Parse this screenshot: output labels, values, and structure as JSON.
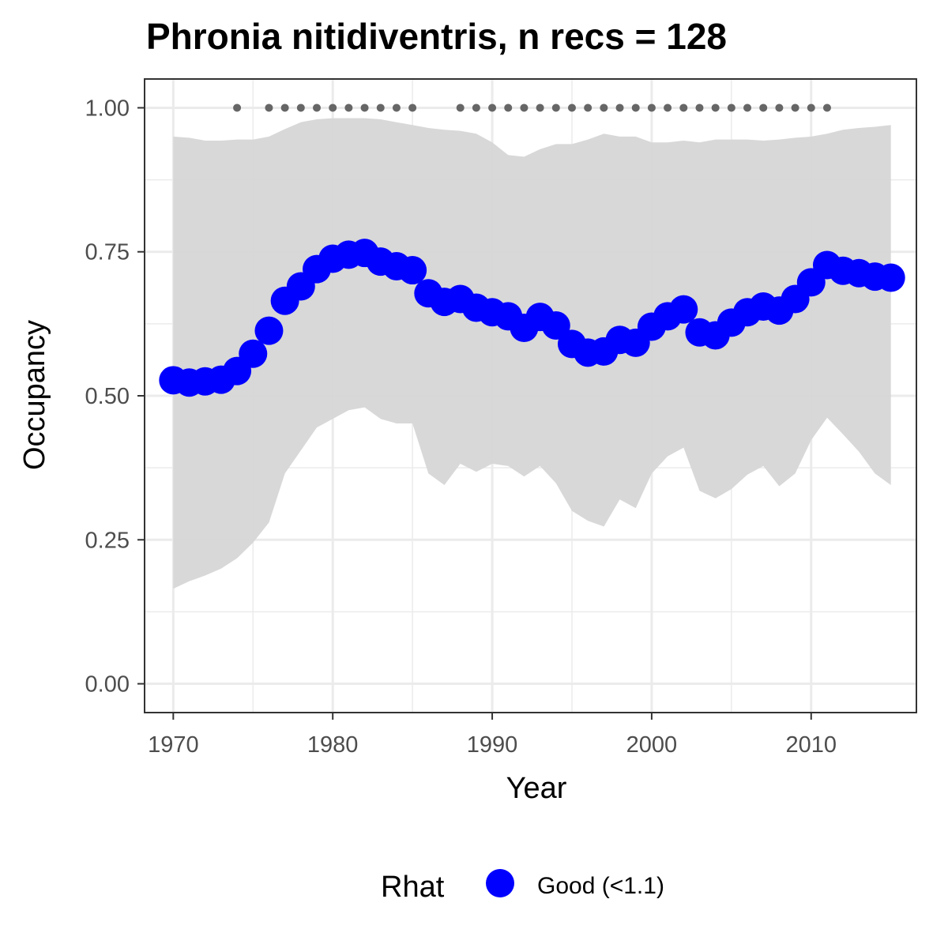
{
  "chart_data": {
    "type": "line",
    "title": "Phronia nitidiventris, n recs = 128",
    "xlabel": "Year",
    "ylabel": "Occupancy",
    "xlim": [
      1968.2,
      2016.6
    ],
    "ylim": [
      -0.05,
      1.05
    ],
    "x_ticks": [
      1970,
      1980,
      1990,
      2000,
      2010
    ],
    "y_ticks": [
      0.0,
      0.25,
      0.5,
      0.75,
      1.0
    ],
    "x_tick_labels": [
      "1970",
      "1980",
      "1990",
      "2000",
      "2010"
    ],
    "y_tick_labels": [
      "0.00",
      "0.25",
      "0.50",
      "0.75",
      "1.00"
    ],
    "grid": true,
    "legend": {
      "title": "Rhat",
      "position": "bottom",
      "entries": [
        {
          "label": "Good (<1.1)",
          "color": "#0000ff"
        }
      ]
    },
    "colors": {
      "points": "#0000ff",
      "ribbon": "#d6d6d6",
      "records": "#666666",
      "grid": "#ebebeb"
    },
    "series": [
      {
        "name": "Good (<1.1)",
        "x": [
          1970,
          1971,
          1972,
          1973,
          1974,
          1975,
          1976,
          1977,
          1978,
          1979,
          1980,
          1981,
          1982,
          1983,
          1984,
          1985,
          1986,
          1987,
          1988,
          1989,
          1990,
          1991,
          1992,
          1993,
          1994,
          1995,
          1996,
          1997,
          1998,
          1999,
          2000,
          2001,
          2002,
          2003,
          2004,
          2005,
          2006,
          2007,
          2008,
          2009,
          2010,
          2011,
          2012,
          2013,
          2014,
          2015
        ],
        "y": [
          0.527,
          0.523,
          0.525,
          0.528,
          0.543,
          0.573,
          0.613,
          0.665,
          0.69,
          0.72,
          0.738,
          0.745,
          0.748,
          0.733,
          0.725,
          0.718,
          0.678,
          0.663,
          0.668,
          0.653,
          0.645,
          0.638,
          0.618,
          0.637,
          0.622,
          0.59,
          0.575,
          0.577,
          0.597,
          0.592,
          0.62,
          0.638,
          0.65,
          0.61,
          0.605,
          0.627,
          0.645,
          0.655,
          0.648,
          0.668,
          0.697,
          0.727,
          0.717,
          0.713,
          0.707,
          0.705
        ],
        "lower": [
          0.165,
          0.178,
          0.188,
          0.2,
          0.218,
          0.245,
          0.28,
          0.365,
          0.405,
          0.445,
          0.46,
          0.475,
          0.48,
          0.46,
          0.452,
          0.452,
          0.365,
          0.345,
          0.382,
          0.368,
          0.382,
          0.378,
          0.36,
          0.378,
          0.348,
          0.3,
          0.283,
          0.273,
          0.32,
          0.305,
          0.365,
          0.395,
          0.41,
          0.335,
          0.322,
          0.338,
          0.363,
          0.378,
          0.343,
          0.365,
          0.423,
          0.462,
          0.433,
          0.403,
          0.365,
          0.345
        ],
        "upper": [
          0.95,
          0.948,
          0.943,
          0.943,
          0.945,
          0.945,
          0.95,
          0.963,
          0.975,
          0.98,
          0.982,
          0.982,
          0.982,
          0.98,
          0.975,
          0.97,
          0.965,
          0.962,
          0.96,
          0.955,
          0.94,
          0.918,
          0.915,
          0.928,
          0.937,
          0.937,
          0.945,
          0.955,
          0.95,
          0.95,
          0.94,
          0.94,
          0.943,
          0.94,
          0.945,
          0.945,
          0.945,
          0.943,
          0.945,
          0.948,
          0.95,
          0.955,
          0.962,
          0.965,
          0.967,
          0.97
        ]
      }
    ],
    "record_years": [
      1974,
      1976,
      1977,
      1978,
      1979,
      1980,
      1981,
      1982,
      1983,
      1984,
      1985,
      1988,
      1989,
      1990,
      1991,
      1992,
      1993,
      1994,
      1995,
      1996,
      1997,
      1998,
      1999,
      2000,
      2001,
      2002,
      2003,
      2004,
      2005,
      2006,
      2007,
      2008,
      2009,
      2010,
      2011
    ],
    "record_marker_y": 1.0
  }
}
